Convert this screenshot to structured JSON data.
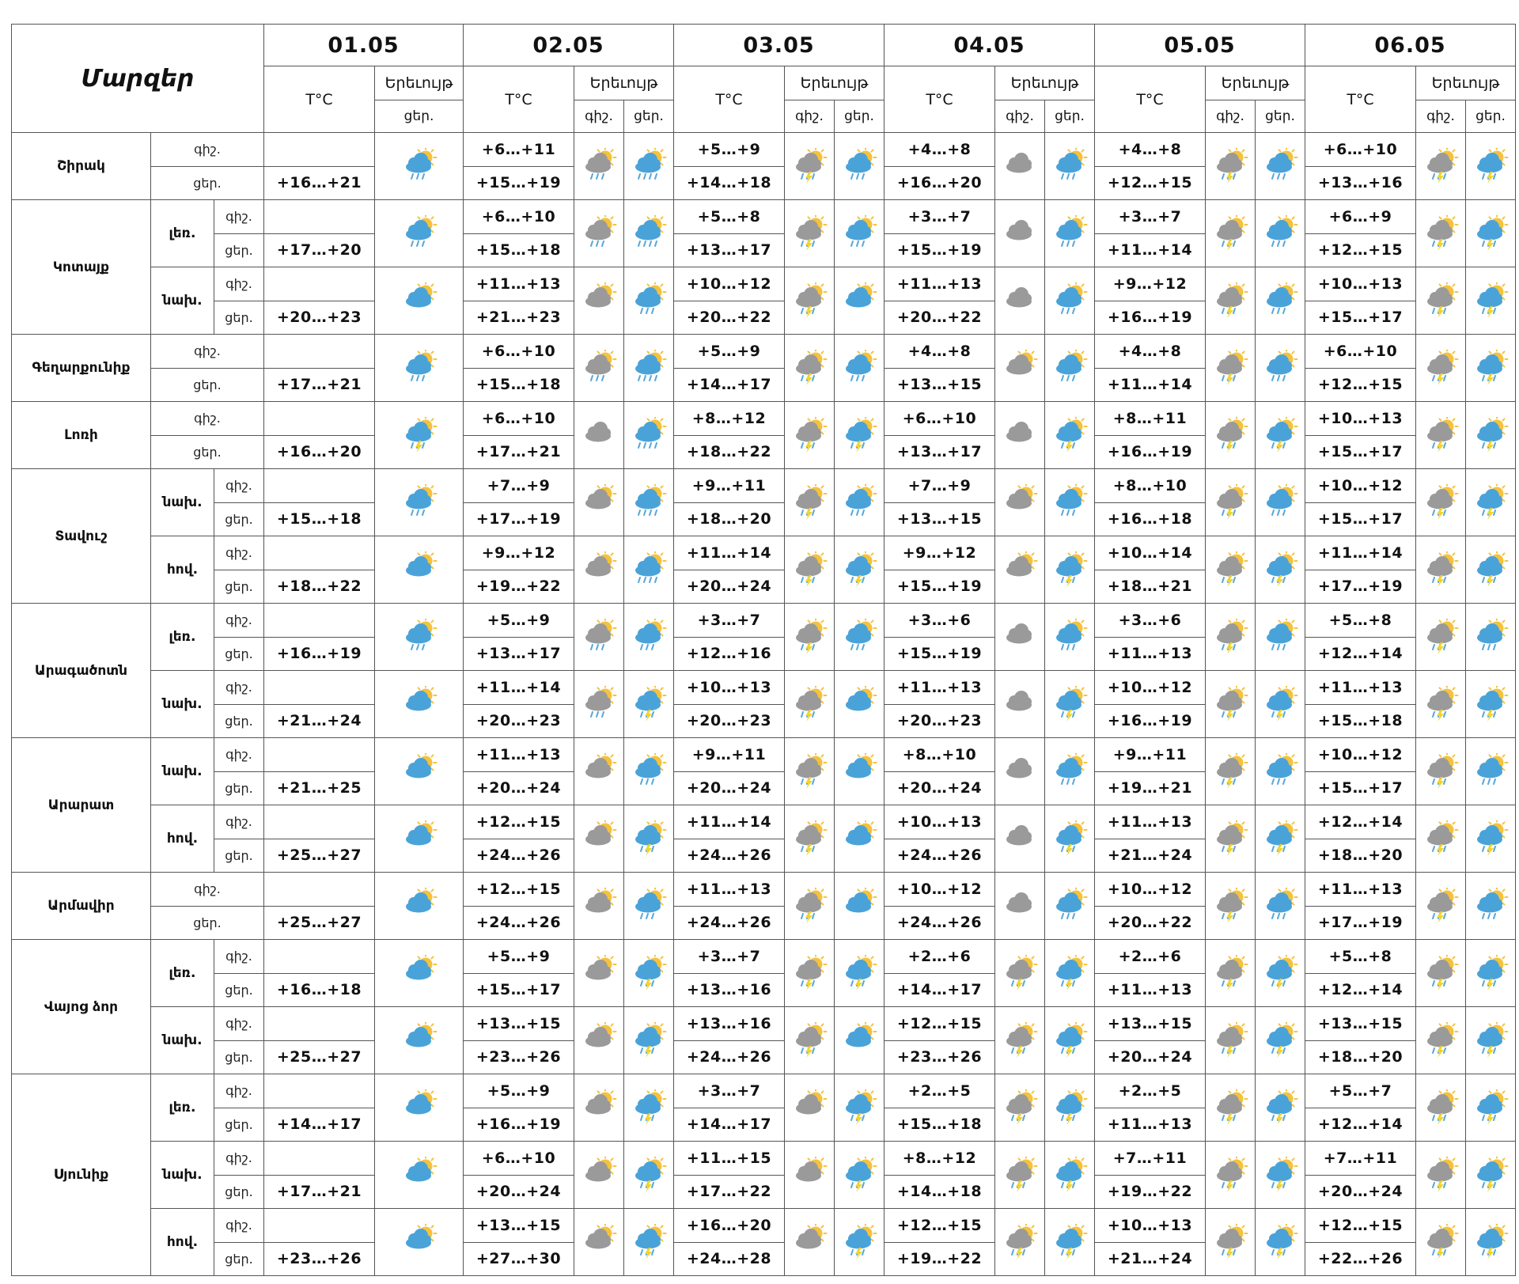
{
  "header": {
    "regions_label": "Մարզեր",
    "dates": [
      "01.05",
      "02.05",
      "03.05",
      "04.05",
      "05.05",
      "06.05"
    ],
    "temp_label": "T°C",
    "phenomenon_label": "Երեւույթ",
    "night_label": "գիշ.",
    "day_label": "ցեր."
  },
  "labels": {
    "night": "գիշ.",
    "day": "ցեր.",
    "mountain": "լեռ.",
    "foothill": "նախ.",
    "valley": "հով."
  },
  "colors": {
    "sun": "#f5c23d",
    "cloud_blue": "#4aa3d8",
    "cloud_gray": "#9a9a9a",
    "rain": "#58a8d8",
    "lightning": "#f2d32b",
    "border": "#555555"
  },
  "groups": [
    {
      "region": "Շիրակ",
      "rows": [
        {
          "sub": "",
          "night": [
            "",
            "+6…+11",
            "+5…+9",
            "+4…+8",
            "+4…+8",
            "+6…+10"
          ],
          "day": [
            "+16…+21",
            "+15…+19",
            "+14…+18",
            "+16…+20",
            "+12…+15",
            "+13…+16"
          ],
          "icons": [
            "sun-cloud-rain-icon",
            "sun-gray-cloud-rain-icon",
            "sun-cloud-heavy-rain-icon",
            "sun-gray-cloud-storm-icon",
            "sun-cloud-rain-icon",
            "gray-cloud-icon",
            "sun-cloud-rain-icon",
            "sun-gray-cloud-storm-icon",
            "sun-cloud-rain-icon",
            "sun-gray-cloud-storm-icon",
            "sun-cloud-storm-icon"
          ]
        }
      ]
    },
    {
      "region": "Կոտայք",
      "rows": [
        {
          "sub": "լեռ.",
          "night": [
            "",
            "+6…+10",
            "+5…+8",
            "+3…+7",
            "+3…+7",
            "+6…+9"
          ],
          "day": [
            "+17…+20",
            "+15…+18",
            "+13…+17",
            "+15…+19",
            "+11…+14",
            "+12…+15"
          ],
          "icons": [
            "sun-cloud-rain-icon",
            "sun-gray-cloud-rain-icon",
            "sun-cloud-heavy-rain-icon",
            "sun-gray-cloud-storm-icon",
            "sun-cloud-rain-icon",
            "gray-cloud-icon",
            "sun-cloud-rain-icon",
            "sun-gray-cloud-storm-icon",
            "sun-cloud-rain-icon",
            "sun-gray-cloud-storm-icon",
            "sun-cloud-storm-icon"
          ]
        },
        {
          "sub": "նախ.",
          "night": [
            "",
            "+11…+13",
            "+10…+12",
            "+11…+13",
            "+9…+12",
            "+10…+13"
          ],
          "day": [
            "+20…+23",
            "+21…+23",
            "+20…+22",
            "+20…+22",
            "+16…+19",
            "+15…+17"
          ],
          "icons": [
            "sun-cloud-icon",
            "sun-gray-cloud-icon",
            "sun-cloud-rain-icon",
            "sun-gray-cloud-storm-icon",
            "sun-cloud-icon",
            "gray-cloud-icon",
            "sun-cloud-rain-icon",
            "sun-gray-cloud-storm-icon",
            "sun-cloud-rain-icon",
            "sun-gray-cloud-storm-icon",
            "sun-cloud-storm-icon"
          ]
        }
      ]
    },
    {
      "region": "Գեղարքունիք",
      "rows": [
        {
          "sub": "",
          "night": [
            "",
            "+6…+10",
            "+5…+9",
            "+4…+8",
            "+4…+8",
            "+6…+10"
          ],
          "day": [
            "+17…+21",
            "+15…+18",
            "+14…+17",
            "+13…+15",
            "+11…+14",
            "+12…+15"
          ],
          "icons": [
            "sun-cloud-rain-icon",
            "sun-gray-cloud-rain-icon",
            "sun-cloud-heavy-rain-icon",
            "sun-gray-cloud-storm-icon",
            "sun-cloud-rain-icon",
            "sun-gray-cloud-icon",
            "sun-cloud-rain-icon",
            "sun-gray-cloud-storm-icon",
            "sun-cloud-rain-icon",
            "sun-gray-cloud-storm-icon",
            "sun-cloud-storm-icon"
          ]
        }
      ]
    },
    {
      "region": "Լոռի",
      "rows": [
        {
          "sub": "",
          "night": [
            "",
            "+6…+10",
            "+8…+12",
            "+6…+10",
            "+8…+11",
            "+10…+13"
          ],
          "day": [
            "+16…+20",
            "+17…+21",
            "+18…+22",
            "+13…+17",
            "+16…+19",
            "+15…+17"
          ],
          "icons": [
            "sun-cloud-storm-icon",
            "gray-cloud-icon",
            "sun-cloud-heavy-rain-icon",
            "sun-gray-cloud-storm-icon",
            "sun-cloud-storm-icon",
            "gray-cloud-icon",
            "sun-cloud-storm-icon",
            "sun-gray-cloud-storm-icon",
            "sun-cloud-storm-icon",
            "sun-gray-cloud-storm-icon",
            "sun-cloud-storm-icon"
          ]
        }
      ]
    },
    {
      "region": "Տավուշ",
      "rows": [
        {
          "sub": "նախ.",
          "night": [
            "",
            "+7…+9",
            "+9…+11",
            "+7…+9",
            "+8…+10",
            "+10…+12"
          ],
          "day": [
            "+15…+18",
            "+17…+19",
            "+18…+20",
            "+13…+15",
            "+16…+18",
            "+15…+17"
          ],
          "icons": [
            "sun-cloud-rain-icon",
            "sun-gray-cloud-icon",
            "sun-cloud-heavy-rain-icon",
            "sun-gray-cloud-storm-icon",
            "sun-cloud-rain-icon",
            "sun-gray-cloud-icon",
            "sun-cloud-rain-icon",
            "sun-gray-cloud-storm-icon",
            "sun-cloud-rain-icon",
            "sun-gray-cloud-storm-icon",
            "sun-cloud-storm-icon"
          ]
        },
        {
          "sub": "հով.",
          "night": [
            "",
            "+9…+12",
            "+11…+14",
            "+9…+12",
            "+10…+14",
            "+11…+14"
          ],
          "day": [
            "+18…+22",
            "+19…+22",
            "+20…+24",
            "+15…+19",
            "+18…+21",
            "+17…+19"
          ],
          "icons": [
            "sun-cloud-icon",
            "sun-gray-cloud-icon",
            "sun-cloud-heavy-rain-icon",
            "sun-gray-cloud-storm-icon",
            "sun-cloud-storm-icon",
            "sun-gray-cloud-icon",
            "sun-cloud-storm-icon",
            "sun-gray-cloud-storm-icon",
            "sun-cloud-storm-icon",
            "sun-gray-cloud-storm-icon",
            "sun-cloud-storm-icon"
          ]
        }
      ]
    },
    {
      "region": "Արագածոտն",
      "rows": [
        {
          "sub": "լեռ.",
          "night": [
            "",
            "+5…+9",
            "+3…+7",
            "+3…+6",
            "+3…+6",
            "+5…+8"
          ],
          "day": [
            "+16…+19",
            "+13…+17",
            "+12…+16",
            "+15…+19",
            "+11…+13",
            "+12…+14"
          ],
          "icons": [
            "sun-cloud-rain-icon",
            "sun-gray-cloud-rain-icon",
            "sun-cloud-rain-icon",
            "sun-gray-cloud-storm-icon",
            "sun-cloud-rain-icon",
            "gray-cloud-icon",
            "sun-cloud-rain-icon",
            "sun-gray-cloud-storm-icon",
            "sun-cloud-rain-icon",
            "sun-gray-cloud-storm-icon",
            "sun-cloud-rain-icon"
          ]
        },
        {
          "sub": "նախ.",
          "night": [
            "",
            "+11…+14",
            "+10…+13",
            "+11…+13",
            "+10…+12",
            "+11…+13"
          ],
          "day": [
            "+21…+24",
            "+20…+23",
            "+20…+23",
            "+20…+23",
            "+16…+19",
            "+15…+18"
          ],
          "icons": [
            "sun-cloud-icon",
            "sun-gray-cloud-rain-icon",
            "sun-cloud-storm-icon",
            "sun-gray-cloud-storm-icon",
            "sun-cloud-icon",
            "gray-cloud-icon",
            "sun-cloud-storm-icon",
            "sun-gray-cloud-storm-icon",
            "sun-cloud-storm-icon",
            "sun-gray-cloud-storm-icon",
            "sun-cloud-storm-icon"
          ]
        }
      ]
    },
    {
      "region": "Արարատ",
      "rows": [
        {
          "sub": "նախ.",
          "night": [
            "",
            "+11…+13",
            "+9…+11",
            "+8…+10",
            "+9…+11",
            "+10…+12"
          ],
          "day": [
            "+21…+25",
            "+20…+24",
            "+20…+24",
            "+20…+24",
            "+19…+21",
            "+15…+17"
          ],
          "icons": [
            "sun-cloud-icon",
            "sun-gray-cloud-icon",
            "sun-cloud-rain-icon",
            "sun-gray-cloud-storm-icon",
            "sun-cloud-icon",
            "gray-cloud-icon",
            "sun-cloud-rain-icon",
            "sun-gray-cloud-storm-icon",
            "sun-cloud-rain-icon",
            "sun-gray-cloud-storm-icon",
            "sun-cloud-rain-icon"
          ]
        },
        {
          "sub": "հով.",
          "night": [
            "",
            "+12…+15",
            "+11…+14",
            "+10…+13",
            "+11…+13",
            "+12…+14"
          ],
          "day": [
            "+25…+27",
            "+24…+26",
            "+24…+26",
            "+24…+26",
            "+21…+24",
            "+18…+20"
          ],
          "icons": [
            "sun-cloud-icon",
            "sun-gray-cloud-icon",
            "sun-cloud-storm-icon",
            "sun-gray-cloud-storm-icon",
            "sun-cloud-icon",
            "gray-cloud-icon",
            "sun-cloud-storm-icon",
            "sun-gray-cloud-storm-icon",
            "sun-cloud-storm-icon",
            "sun-gray-cloud-storm-icon",
            "sun-cloud-storm-icon"
          ]
        }
      ]
    },
    {
      "region": "Արմավիր",
      "rows": [
        {
          "sub": "",
          "night": [
            "",
            "+12…+15",
            "+11…+13",
            "+10…+12",
            "+10…+12",
            "+11…+13"
          ],
          "day": [
            "+25…+27",
            "+24…+26",
            "+24…+26",
            "+24…+26",
            "+20…+22",
            "+17…+19"
          ],
          "icons": [
            "sun-cloud-icon",
            "sun-gray-cloud-icon",
            "sun-cloud-rain-icon",
            "sun-gray-cloud-storm-icon",
            "sun-cloud-icon",
            "gray-cloud-icon",
            "sun-cloud-rain-icon",
            "sun-gray-cloud-storm-icon",
            "sun-cloud-rain-icon",
            "sun-gray-cloud-storm-icon",
            "sun-cloud-rain-icon"
          ]
        }
      ]
    },
    {
      "region": "Վայոց ձոր",
      "rows": [
        {
          "sub": "լեռ.",
          "night": [
            "",
            "+5…+9",
            "+3…+7",
            "+2…+6",
            "+2…+6",
            "+5…+8"
          ],
          "day": [
            "+16…+18",
            "+15…+17",
            "+13…+16",
            "+14…+17",
            "+11…+13",
            "+12…+14"
          ],
          "icons": [
            "sun-cloud-icon",
            "sun-gray-cloud-icon",
            "sun-cloud-storm-icon",
            "sun-gray-cloud-storm-icon",
            "sun-cloud-storm-icon",
            "sun-gray-cloud-storm-icon",
            "sun-cloud-storm-icon",
            "sun-gray-cloud-storm-icon",
            "sun-cloud-storm-icon",
            "sun-gray-cloud-storm-icon",
            "sun-cloud-storm-icon"
          ]
        },
        {
          "sub": "նախ.",
          "night": [
            "",
            "+13…+15",
            "+13…+16",
            "+12…+15",
            "+13…+15",
            "+13…+15"
          ],
          "day": [
            "+25…+27",
            "+23…+26",
            "+24…+26",
            "+23…+26",
            "+20…+24",
            "+18…+20"
          ],
          "icons": [
            "sun-cloud-icon",
            "sun-gray-cloud-icon",
            "sun-cloud-storm-icon",
            "sun-gray-cloud-storm-icon",
            "sun-cloud-icon",
            "sun-gray-cloud-storm-icon",
            "sun-cloud-storm-icon",
            "sun-gray-cloud-storm-icon",
            "sun-cloud-storm-icon",
            "sun-gray-cloud-storm-icon",
            "sun-cloud-storm-icon"
          ]
        }
      ]
    },
    {
      "region": "Սյունիք",
      "rows": [
        {
          "sub": "լեռ.",
          "night": [
            "",
            "+5…+9",
            "+3…+7",
            "+2…+5",
            "+2…+5",
            "+5…+7"
          ],
          "day": [
            "+14…+17",
            "+16…+19",
            "+14…+17",
            "+15…+18",
            "+11…+13",
            "+12…+14"
          ],
          "icons": [
            "sun-cloud-icon",
            "sun-gray-cloud-icon",
            "sun-cloud-storm-icon",
            "sun-gray-cloud-icon",
            "sun-cloud-storm-icon",
            "sun-gray-cloud-storm-icon",
            "sun-cloud-storm-icon",
            "sun-gray-cloud-storm-icon",
            "sun-cloud-storm-icon",
            "sun-gray-cloud-storm-icon",
            "sun-cloud-storm-icon"
          ]
        },
        {
          "sub": "նախ.",
          "night": [
            "",
            "+6…+10",
            "+11…+15",
            "+8…+12",
            "+7…+11",
            "+7…+11"
          ],
          "day": [
            "+17…+21",
            "+20…+24",
            "+17…+22",
            "+14…+18",
            "+19…+22",
            "+20…+24"
          ],
          "icons": [
            "sun-cloud-icon",
            "sun-gray-cloud-icon",
            "sun-cloud-storm-icon",
            "sun-gray-cloud-icon",
            "sun-cloud-storm-icon",
            "sun-gray-cloud-storm-icon",
            "sun-cloud-storm-icon",
            "sun-gray-cloud-storm-icon",
            "sun-cloud-storm-icon",
            "sun-gray-cloud-storm-icon",
            "sun-cloud-storm-icon"
          ]
        },
        {
          "sub": "հով.",
          "night": [
            "",
            "+13…+15",
            "+16…+20",
            "+12…+15",
            "+10…+13",
            "+12…+15"
          ],
          "day": [
            "+23…+26",
            "+27…+30",
            "+24…+28",
            "+19…+22",
            "+21…+24",
            "+22…+26"
          ],
          "icons": [
            "sun-cloud-icon",
            "sun-gray-cloud-icon",
            "sun-cloud-storm-icon",
            "sun-gray-cloud-icon",
            "sun-cloud-storm-icon",
            "sun-gray-cloud-storm-icon",
            "sun-cloud-storm-icon",
            "sun-gray-cloud-storm-icon",
            "sun-cloud-storm-icon",
            "sun-gray-cloud-storm-icon",
            "sun-cloud-storm-icon"
          ]
        }
      ]
    }
  ]
}
